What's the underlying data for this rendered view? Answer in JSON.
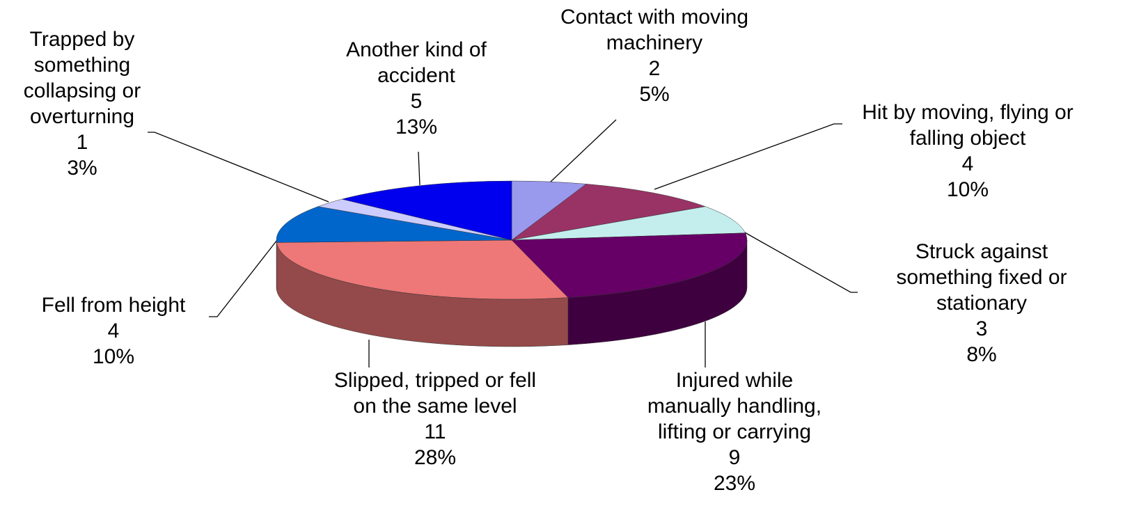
{
  "chart_data": {
    "type": "pie3d",
    "categories": [
      "Contact with moving machinery",
      "Hit by moving, flying or falling object",
      "Struck against something fixed or stationary",
      "Injured while manually handling, lifting or carrying",
      "Slipped, tripped or fell on the same level",
      "Fell from height",
      "Trapped by something collapsing or overturning",
      "Another kind of accident"
    ],
    "values": [
      2,
      4,
      3,
      9,
      11,
      4,
      1,
      5
    ],
    "percents": [
      5,
      10,
      8,
      23,
      28,
      10,
      3,
      13
    ],
    "percent_labels": [
      "5%",
      "10%",
      "8%",
      "23%",
      "28%",
      "10%",
      "3%",
      "13%"
    ],
    "colors": [
      "#9999ee",
      "#993366",
      "#c4eeee",
      "#660066",
      "#ee7777",
      "#0066cc",
      "#ccccff",
      "#0000ee"
    ]
  }
}
